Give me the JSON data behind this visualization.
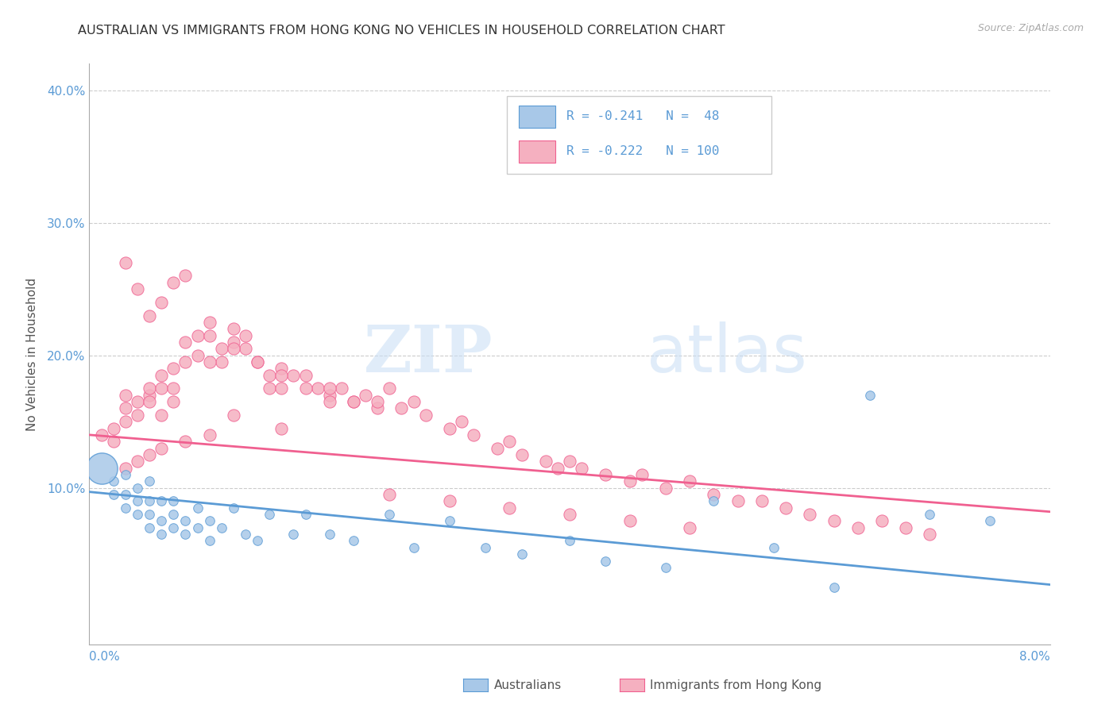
{
  "title": "AUSTRALIAN VS IMMIGRANTS FROM HONG KONG NO VEHICLES IN HOUSEHOLD CORRELATION CHART",
  "source": "Source: ZipAtlas.com",
  "ylabel": "No Vehicles in Household",
  "xlim": [
    0,
    0.08
  ],
  "ylim": [
    -0.018,
    0.42
  ],
  "color_blue": "#a8c8e8",
  "color_pink": "#f5b0c0",
  "line_blue": "#5b9bd5",
  "line_pink": "#f06090",
  "grid_color": "#cccccc",
  "axis_label_color": "#5b9bd5",
  "watermark_zip": "ZIP",
  "watermark_atlas": "atlas",
  "aus_x": [
    0.001,
    0.002,
    0.002,
    0.003,
    0.003,
    0.003,
    0.004,
    0.004,
    0.004,
    0.005,
    0.005,
    0.005,
    0.005,
    0.006,
    0.006,
    0.006,
    0.007,
    0.007,
    0.007,
    0.008,
    0.008,
    0.009,
    0.009,
    0.01,
    0.01,
    0.011,
    0.012,
    0.013,
    0.014,
    0.015,
    0.017,
    0.018,
    0.02,
    0.022,
    0.025,
    0.027,
    0.03,
    0.033,
    0.036,
    0.04,
    0.043,
    0.048,
    0.052,
    0.057,
    0.062,
    0.065,
    0.07,
    0.075
  ],
  "aus_y": [
    0.115,
    0.095,
    0.105,
    0.085,
    0.095,
    0.11,
    0.08,
    0.09,
    0.1,
    0.07,
    0.08,
    0.09,
    0.105,
    0.065,
    0.075,
    0.09,
    0.07,
    0.08,
    0.09,
    0.065,
    0.075,
    0.07,
    0.085,
    0.06,
    0.075,
    0.07,
    0.085,
    0.065,
    0.06,
    0.08,
    0.065,
    0.08,
    0.065,
    0.06,
    0.08,
    0.055,
    0.075,
    0.055,
    0.05,
    0.06,
    0.045,
    0.04,
    0.09,
    0.055,
    0.025,
    0.17,
    0.08,
    0.075
  ],
  "aus_size": [
    800,
    60,
    60,
    60,
    60,
    60,
    100,
    80,
    60,
    100,
    80,
    60,
    60,
    120,
    80,
    60,
    100,
    80,
    60,
    80,
    60,
    60,
    60,
    60,
    60,
    60,
    60,
    60,
    60,
    60,
    60,
    60,
    60,
    60,
    60,
    60,
    60,
    60,
    60,
    60,
    60,
    60,
    60,
    60,
    60,
    60,
    60,
    60
  ],
  "hk_x": [
    0.001,
    0.002,
    0.002,
    0.003,
    0.003,
    0.003,
    0.004,
    0.004,
    0.005,
    0.005,
    0.005,
    0.006,
    0.006,
    0.006,
    0.007,
    0.007,
    0.007,
    0.008,
    0.008,
    0.009,
    0.009,
    0.01,
    0.01,
    0.011,
    0.011,
    0.012,
    0.012,
    0.013,
    0.013,
    0.014,
    0.015,
    0.015,
    0.016,
    0.016,
    0.017,
    0.018,
    0.019,
    0.02,
    0.02,
    0.021,
    0.022,
    0.023,
    0.024,
    0.025,
    0.026,
    0.027,
    0.028,
    0.03,
    0.031,
    0.032,
    0.034,
    0.035,
    0.036,
    0.038,
    0.039,
    0.04,
    0.041,
    0.043,
    0.045,
    0.046,
    0.048,
    0.05,
    0.052,
    0.054,
    0.056,
    0.058,
    0.06,
    0.062,
    0.064,
    0.066,
    0.068,
    0.07,
    0.003,
    0.004,
    0.005,
    0.006,
    0.007,
    0.008,
    0.01,
    0.012,
    0.014,
    0.016,
    0.018,
    0.02,
    0.022,
    0.024,
    0.016,
    0.012,
    0.01,
    0.008,
    0.006,
    0.005,
    0.004,
    0.003,
    0.025,
    0.03,
    0.035,
    0.04,
    0.045,
    0.05
  ],
  "hk_y": [
    0.14,
    0.135,
    0.145,
    0.16,
    0.17,
    0.15,
    0.155,
    0.165,
    0.17,
    0.175,
    0.165,
    0.175,
    0.185,
    0.155,
    0.165,
    0.175,
    0.19,
    0.195,
    0.21,
    0.2,
    0.215,
    0.215,
    0.225,
    0.195,
    0.205,
    0.22,
    0.21,
    0.205,
    0.215,
    0.195,
    0.175,
    0.185,
    0.19,
    0.175,
    0.185,
    0.185,
    0.175,
    0.17,
    0.165,
    0.175,
    0.165,
    0.17,
    0.16,
    0.175,
    0.16,
    0.165,
    0.155,
    0.145,
    0.15,
    0.14,
    0.13,
    0.135,
    0.125,
    0.12,
    0.115,
    0.12,
    0.115,
    0.11,
    0.105,
    0.11,
    0.1,
    0.105,
    0.095,
    0.09,
    0.09,
    0.085,
    0.08,
    0.075,
    0.07,
    0.075,
    0.07,
    0.065,
    0.27,
    0.25,
    0.23,
    0.24,
    0.255,
    0.26,
    0.195,
    0.205,
    0.195,
    0.185,
    0.175,
    0.175,
    0.165,
    0.165,
    0.145,
    0.155,
    0.14,
    0.135,
    0.13,
    0.125,
    0.12,
    0.115,
    0.095,
    0.09,
    0.085,
    0.08,
    0.075,
    0.07
  ],
  "blue_line_y0": 0.097,
  "blue_line_y1": 0.027,
  "pink_line_y0": 0.14,
  "pink_line_y1": 0.082
}
